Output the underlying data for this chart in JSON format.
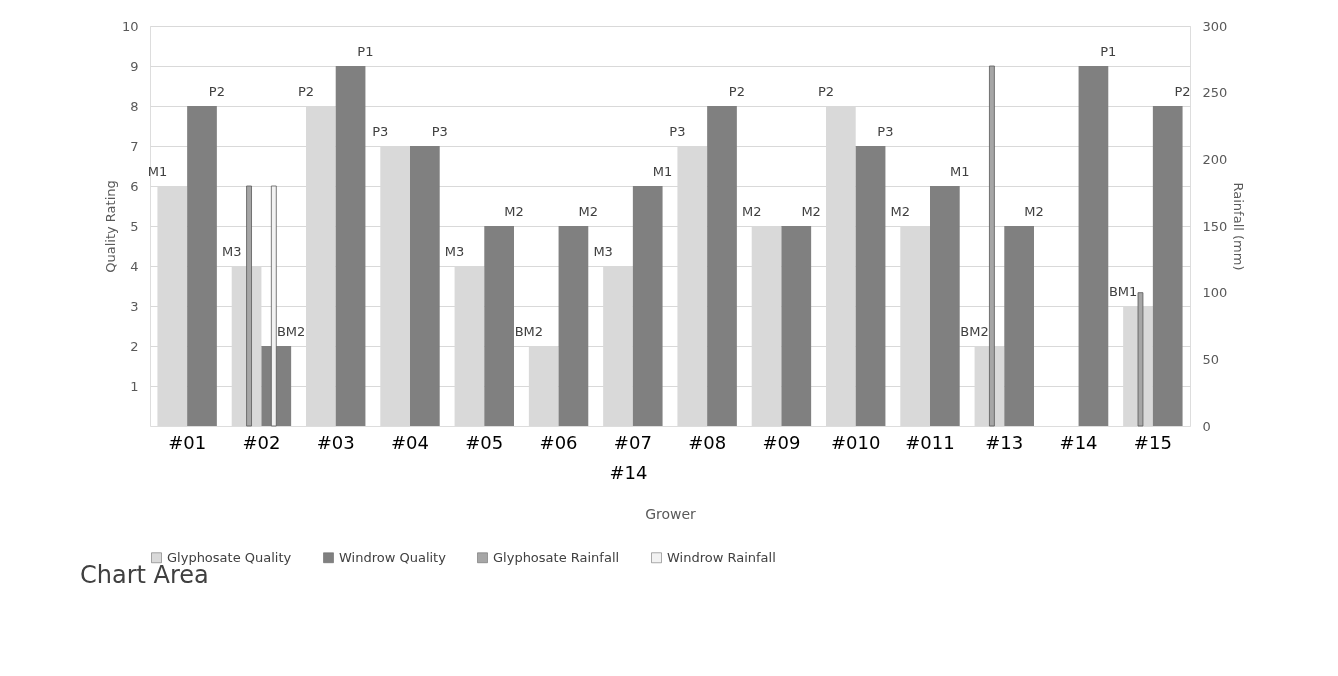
{
  "chart_data": {
    "type": "bar",
    "xlabel": "Grower",
    "ylabel": "Quality Rating",
    "y2label": "Rainfall (mm)",
    "categories": [
      "#01",
      "#02",
      "#03",
      "#04",
      "#05",
      "#06",
      "#07",
      "#08",
      "#09",
      "#010",
      "#011",
      "#13",
      "#14",
      "#15"
    ],
    "series": [
      {
        "name": "Glyphosate Quality",
        "color": "#d9d9d9",
        "values": [
          6,
          4,
          8,
          7,
          4,
          2,
          4,
          7,
          5,
          8,
          5,
          2,
          null,
          3
        ],
        "value_labels": [
          "M1",
          "M3",
          "P2",
          "P3",
          "M3",
          "BM2",
          "M3",
          "P3",
          "M2",
          "P2",
          "M2",
          "BM2",
          null,
          "BM1"
        ]
      },
      {
        "name": "Windrow Quality",
        "color": "#808080",
        "values": [
          8,
          2,
          9,
          7,
          5,
          5,
          6,
          8,
          5,
          7,
          6,
          5,
          9,
          8
        ],
        "value_labels": [
          "P2",
          "BM2",
          "P1",
          "P3",
          "M2",
          "M2",
          "M1",
          "P2",
          "M2",
          "P3",
          "M1",
          "M2",
          "P1",
          "P2"
        ]
      },
      {
        "name": "Glyphosate Rainfall",
        "color": "#a6a6a6",
        "axis": "y2",
        "values": [
          null,
          180,
          null,
          null,
          null,
          null,
          null,
          null,
          null,
          null,
          null,
          270,
          null,
          100
        ]
      },
      {
        "name": "Windrow Rainfall",
        "color": "#f2f2f2",
        "axis": "y2",
        "values": [
          null,
          180,
          null,
          null,
          null,
          null,
          null,
          null,
          null,
          null,
          null,
          null,
          null,
          null
        ]
      }
    ],
    "ylim": [
      0,
      10
    ],
    "yticks": [
      1,
      2,
      3,
      4,
      5,
      6,
      7,
      8,
      9,
      10
    ],
    "y2lim": [
      0,
      300
    ],
    "y2ticks": [
      0,
      50,
      100,
      150,
      200,
      250,
      300
    ],
    "grid": "y",
    "legend": "bottom",
    "annotations": [
      "#14",
      "Chart Area"
    ]
  }
}
